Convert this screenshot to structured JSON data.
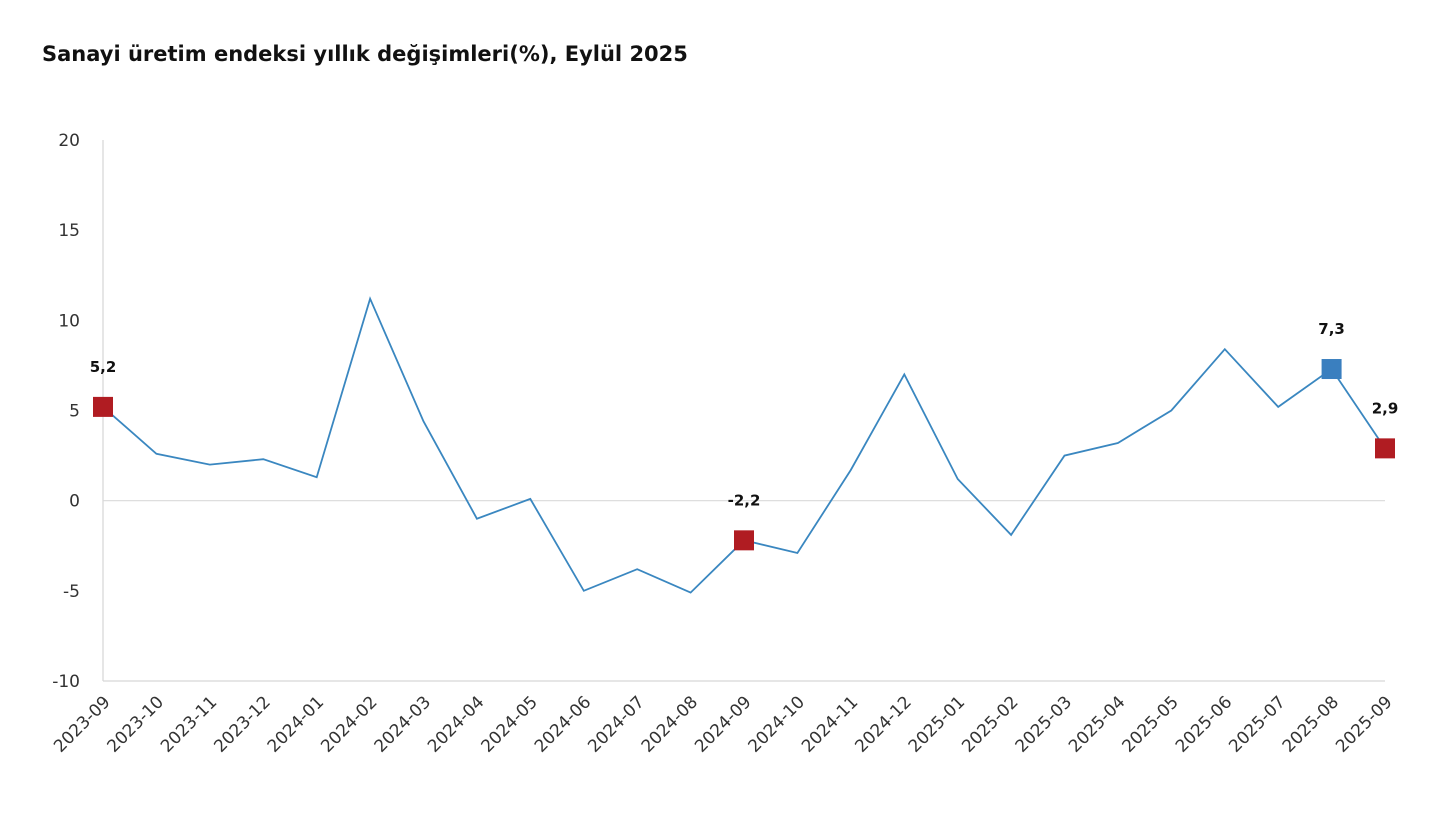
{
  "chart_data": {
    "type": "line",
    "title": "Sanayi üretim endeksi yıllık değişimleri(%), Eylül 2025",
    "xlabel": "",
    "ylabel": "",
    "ylim": [
      -10,
      20
    ],
    "yticks": [
      20,
      15,
      10,
      5,
      0,
      -5,
      -10
    ],
    "grid": false,
    "legend": "none",
    "categories": [
      "2023-09",
      "2023-10",
      "2023-11",
      "2023-12",
      "2024-01",
      "2024-02",
      "2024-03",
      "2024-04",
      "2024-05",
      "2024-06",
      "2024-07",
      "2024-08",
      "2024-09",
      "2024-10",
      "2024-11",
      "2024-12",
      "2025-01",
      "2025-02",
      "2025-03",
      "2025-04",
      "2025-05",
      "2025-06",
      "2025-07",
      "2025-08",
      "2025-09"
    ],
    "series": [
      {
        "values": [
          5.2,
          2.6,
          2.0,
          2.3,
          1.3,
          11.2,
          4.4,
          -1.0,
          0.1,
          -5.0,
          -3.8,
          -5.1,
          -2.2,
          -2.9,
          1.7,
          7.0,
          1.2,
          -1.9,
          2.5,
          3.2,
          5.0,
          8.4,
          5.2,
          7.3,
          2.9
        ],
        "color": "#3a87c0"
      }
    ],
    "highlighted_points": [
      {
        "category": "2023-09",
        "value": 5.2,
        "label": "5,2",
        "color": "#b01c22"
      },
      {
        "category": "2024-09",
        "value": -2.2,
        "label": "-2,2",
        "color": "#b01c22"
      },
      {
        "category": "2025-08",
        "value": 7.3,
        "label": "7,3",
        "color": "#3a7fbf"
      },
      {
        "category": "2025-09",
        "value": 2.9,
        "label": "2,9",
        "color": "#b01c22"
      }
    ],
    "colors": {
      "axis": "#d6d6d6",
      "zero_line": "#d9d9d9",
      "line": "#3a87c0"
    }
  }
}
